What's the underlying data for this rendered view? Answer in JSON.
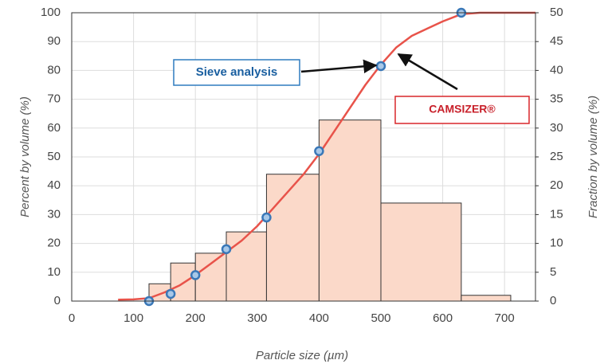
{
  "chart_data": {
    "type": "combo",
    "xlabel": "Particle size (µm)",
    "ylabel": "Percent by volume (%)",
    "y2label": "Fraction by volume (%)",
    "xlim": [
      0,
      750
    ],
    "xticks": [
      0,
      100,
      200,
      300,
      400,
      500,
      600,
      700
    ],
    "ylim": [
      0,
      100
    ],
    "yticks": [
      0,
      10,
      20,
      30,
      40,
      50,
      60,
      70,
      80,
      90,
      100
    ],
    "y2lim": [
      0,
      50
    ],
    "y2ticks": [
      0,
      5,
      10,
      15,
      20,
      25,
      30,
      35,
      40,
      45,
      50
    ],
    "grid": true,
    "series": [
      {
        "type": "histogram",
        "axis": "y2",
        "color": "#fbd9c9",
        "bins": [
          125,
          160,
          200,
          250,
          315,
          400,
          500,
          630,
          710
        ],
        "values": [
          3.0,
          6.6,
          8.3,
          12.0,
          22.0,
          31.4,
          17.0,
          1.0
        ]
      },
      {
        "type": "line",
        "color": "#e8534a",
        "x": [
          75,
          100,
          125,
          150,
          175,
          200,
          225,
          250,
          275,
          300,
          325,
          350,
          375,
          400,
          425,
          450,
          475,
          500,
          525,
          550,
          575,
          600,
          630,
          660,
          700,
          750
        ],
        "values": [
          0.5,
          0.6,
          1,
          3,
          5.5,
          9,
          13,
          17,
          21,
          26,
          32,
          38,
          44,
          51,
          59,
          67,
          75,
          82,
          88,
          92,
          94.5,
          97,
          99.5,
          100,
          100,
          100
        ]
      },
      {
        "type": "scatter",
        "color": "#a8c8e8",
        "x": [
          125,
          160,
          200,
          250,
          315,
          400,
          500,
          630
        ],
        "values": [
          0,
          2.5,
          9,
          18,
          29,
          52,
          81.5,
          100
        ]
      }
    ],
    "annotations": [
      "Sieve analysis",
      "CAMSIZER®"
    ]
  }
}
